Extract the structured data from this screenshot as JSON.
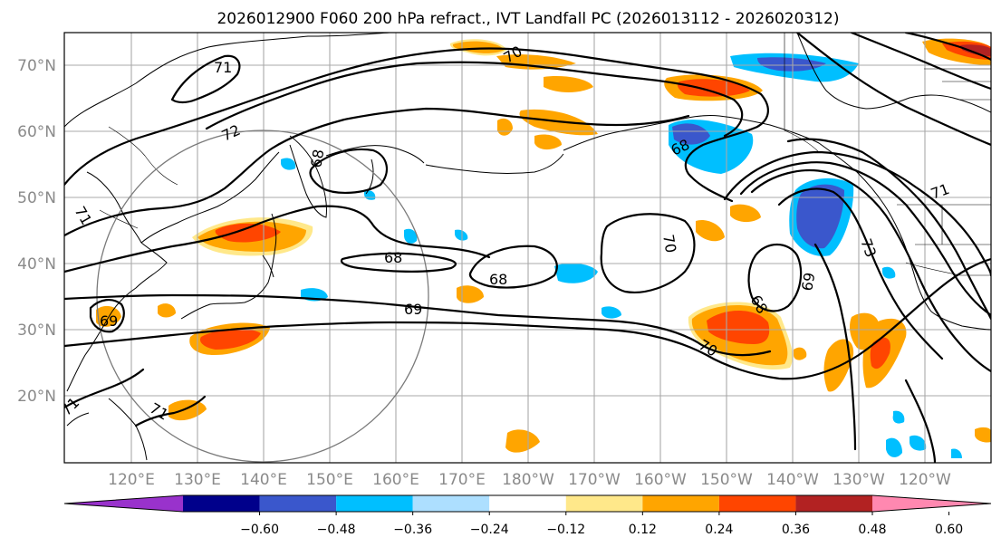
{
  "title": "2026012900 F060 200 hPa refract., IVT Landfall PC (2026013112 - 2026020312)",
  "map": {
    "lat_labels": [
      "70°N",
      "60°N",
      "50°N",
      "40°N",
      "30°N",
      "20°N"
    ],
    "lon_labels": [
      "120°E",
      "130°E",
      "140°E",
      "150°E",
      "160°E",
      "170°E",
      "180°W",
      "170°W",
      "160°W",
      "150°W",
      "140°W",
      "130°W",
      "120°W"
    ],
    "contour_labels": [
      "71",
      "72",
      "71",
      "68",
      "68",
      "68",
      "69",
      "69",
      "70",
      "68",
      "68",
      "69",
      "73",
      "70",
      "70",
      "71",
      "71",
      "71"
    ],
    "colors": {
      "ocean": "#ffffff",
      "gridline": "#a9a9a9",
      "contour": "#000000"
    }
  },
  "colorbar": {
    "ticks": [
      "−0.60",
      "−0.48",
      "−0.36",
      "−0.24",
      "−0.12",
      "0.12",
      "0.24",
      "0.36",
      "0.48",
      "0.60"
    ],
    "colors": [
      "#9932CC",
      "#00008B",
      "#3A57CC",
      "#00BFFF",
      "#ADDFFF",
      "#FFFFFF",
      "#FFE88A",
      "#FFA500",
      "#FF4500",
      "#B22222",
      "#FF88B0"
    ]
  }
}
